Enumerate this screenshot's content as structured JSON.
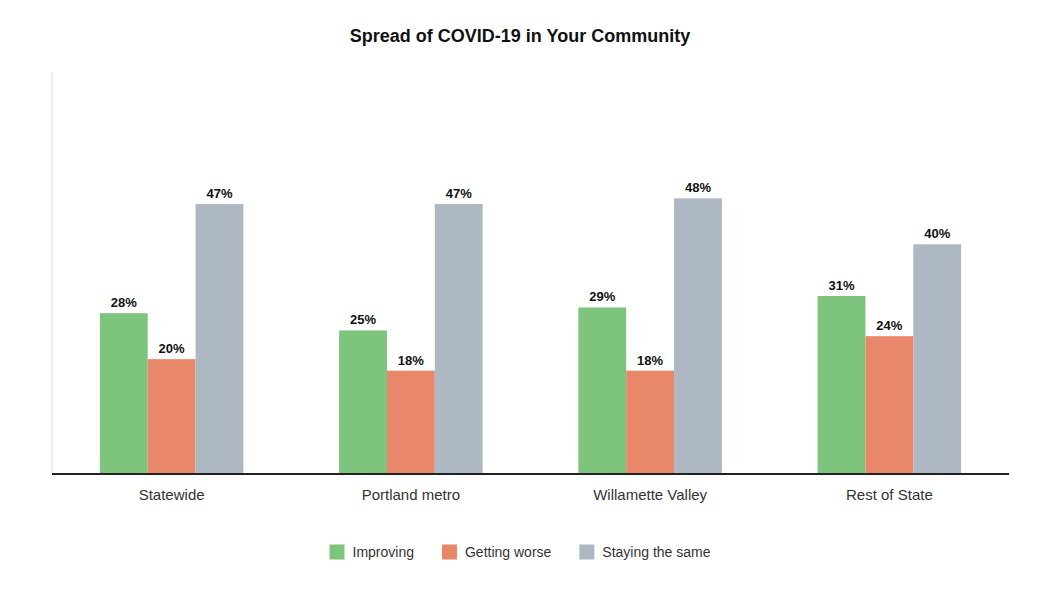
{
  "chart_data": {
    "type": "bar",
    "title": "Spread of COVID-19 in Your Community",
    "categories": [
      "Statewide",
      "Portland metro",
      "Willamette Valley",
      "Rest of State"
    ],
    "series": [
      {
        "name": "Improving",
        "color": "#7dc47d",
        "values": [
          28,
          25,
          29,
          31
        ],
        "value_labels": [
          "28%",
          "25%",
          "29%",
          "31%"
        ]
      },
      {
        "name": "Getting worse",
        "color": "#e8876a",
        "values": [
          20,
          18,
          18,
          24
        ],
        "value_labels": [
          "20%",
          "18%",
          "18%",
          "24%"
        ]
      },
      {
        "name": "Staying the same",
        "color": "#adb8c2",
        "values": [
          47,
          47,
          48,
          40
        ],
        "value_labels": [
          "47%",
          "47%",
          "48%",
          "40%"
        ]
      }
    ],
    "ylim": [
      0,
      70
    ],
    "data_labels": true,
    "tick_labels": "x",
    "grid": false,
    "legend": "bottom"
  }
}
